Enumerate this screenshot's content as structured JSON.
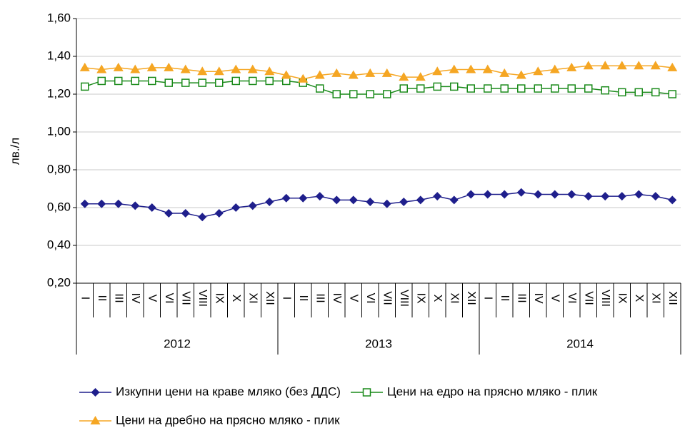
{
  "chart_data": {
    "type": "line",
    "y_label": "лв./л",
    "categories": [
      "I",
      "II",
      "III",
      "IV",
      "V",
      "VI",
      "VII",
      "VIII",
      "IX",
      "X",
      "XI",
      "XII",
      "I",
      "II",
      "III",
      "IV",
      "V",
      "VI",
      "VII",
      "VIII",
      "IX",
      "X",
      "XI",
      "XII",
      "I",
      "II",
      "III",
      "IV",
      "V",
      "VI",
      "VII",
      "VIII",
      "IX",
      "X",
      "XI",
      "XII"
    ],
    "years": [
      "2012",
      "2013",
      "2014"
    ],
    "series": [
      {
        "name": "Изкупни цени на краве мляко (без ДДС)",
        "color": "#1f1f8c",
        "marker": "diamond",
        "values": [
          0.62,
          0.62,
          0.62,
          0.61,
          0.6,
          0.57,
          0.57,
          0.55,
          0.57,
          0.6,
          0.61,
          0.63,
          0.65,
          0.65,
          0.66,
          0.64,
          0.64,
          0.63,
          0.62,
          0.63,
          0.64,
          0.66,
          0.64,
          0.67,
          0.67,
          0.67,
          0.68,
          0.67,
          0.67,
          0.67,
          0.66,
          0.66,
          0.66,
          0.67,
          0.66,
          0.64
        ]
      },
      {
        "name": "Цени на едро на прясно мляко - плик",
        "color": "#1a8a1a",
        "marker": "square",
        "values": [
          1.24,
          1.27,
          1.27,
          1.27,
          1.27,
          1.26,
          1.26,
          1.26,
          1.26,
          1.27,
          1.27,
          1.27,
          1.27,
          1.26,
          1.23,
          1.2,
          1.2,
          1.2,
          1.2,
          1.23,
          1.23,
          1.24,
          1.24,
          1.23,
          1.23,
          1.23,
          1.23,
          1.23,
          1.23,
          1.23,
          1.23,
          1.22,
          1.21,
          1.21,
          1.21,
          1.2
        ]
      },
      {
        "name": "Цени на дребно на прясно мляко - плик",
        "color": "#f5a623",
        "marker": "triangle",
        "values": [
          1.34,
          1.33,
          1.34,
          1.33,
          1.34,
          1.34,
          1.33,
          1.32,
          1.32,
          1.33,
          1.33,
          1.32,
          1.3,
          1.28,
          1.3,
          1.31,
          1.3,
          1.31,
          1.31,
          1.29,
          1.29,
          1.32,
          1.33,
          1.33,
          1.33,
          1.31,
          1.3,
          1.32,
          1.33,
          1.34,
          1.35,
          1.35,
          1.35,
          1.35,
          1.35,
          1.34
        ]
      }
    ],
    "ylim": [
      0.2,
      1.6
    ],
    "yticks": [
      {
        "value": 0.2,
        "label": "0,20"
      },
      {
        "value": 0.4,
        "label": "0,40"
      },
      {
        "value": 0.6,
        "label": "0,60"
      },
      {
        "value": 0.8,
        "label": "0,80"
      },
      {
        "value": 1.0,
        "label": "1,00"
      },
      {
        "value": 1.2,
        "label": "1,20"
      },
      {
        "value": 1.4,
        "label": "1,40"
      },
      {
        "value": 1.6,
        "label": "1,60"
      }
    ],
    "grid": true
  }
}
